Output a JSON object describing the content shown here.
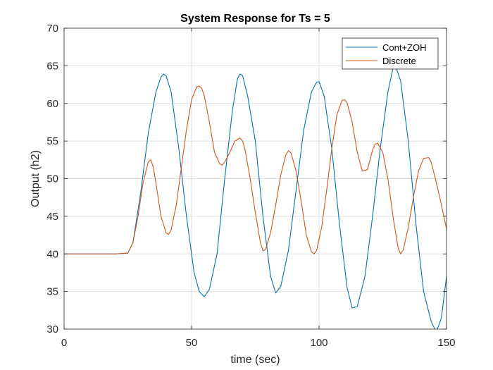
{
  "chart_data": {
    "type": "line",
    "title": "System Response for Ts = 5",
    "xlabel": "time (sec)",
    "ylabel": "Output (h2)",
    "xlim": [
      0,
      150
    ],
    "ylim": [
      30,
      70
    ],
    "xticks": [
      0,
      50,
      100,
      150
    ],
    "xtick_labels": [
      "0",
      "50",
      "100",
      "150"
    ],
    "yticks": [
      30,
      35,
      40,
      45,
      50,
      55,
      60,
      65,
      70
    ],
    "ytick_labels": [
      "30",
      "35",
      "40",
      "45",
      "50",
      "55",
      "60",
      "65",
      "70"
    ],
    "grid": true,
    "legend_position": "top-right",
    "series": [
      {
        "name": "Cont+ZOH",
        "color": "#0072BD",
        "x": [
          0,
          10,
          20,
          25,
          27,
          30,
          33,
          36,
          38,
          39,
          40,
          42,
          45,
          48,
          51,
          53,
          55,
          57,
          60,
          63,
          66,
          68,
          69,
          70,
          72,
          75,
          78,
          81,
          83,
          85,
          88,
          91,
          94,
          97,
          99,
          100,
          102,
          105,
          108,
          111,
          113,
          115,
          118,
          121,
          124,
          127,
          129,
          130,
          132,
          135,
          138,
          141,
          144,
          146,
          148,
          150
        ],
        "y": [
          40,
          40,
          40,
          40.1,
          41.5,
          48,
          56,
          61.5,
          63.5,
          63.9,
          63.7,
          61.5,
          54,
          45,
          37.5,
          35,
          34.3,
          35.3,
          40,
          50,
          59,
          63.3,
          63.9,
          63.7,
          61,
          55,
          45,
          37,
          34.8,
          35.7,
          40.5,
          48.5,
          56.5,
          61.5,
          62.8,
          62.9,
          61,
          54,
          44,
          35.5,
          32.8,
          33,
          37,
          45,
          54,
          61.5,
          64.7,
          65,
          63,
          55,
          44,
          35,
          31,
          29.6,
          31.5,
          37
        ]
      },
      {
        "name": "Discrete",
        "color": "#D95319",
        "x": [
          0,
          10,
          20,
          25,
          27,
          29,
          31,
          33,
          34,
          35,
          36,
          38,
          40,
          41,
          42,
          44,
          46,
          48,
          50,
          52,
          53,
          54,
          55,
          57,
          59,
          61,
          62,
          63,
          65,
          67,
          69,
          70,
          71,
          73,
          75,
          77,
          78,
          79,
          81,
          83,
          85,
          87,
          88,
          89,
          91,
          93,
          95,
          97,
          98,
          99,
          101,
          103,
          105,
          107,
          109,
          110,
          111,
          113,
          115,
          117,
          119,
          120,
          121,
          122,
          123,
          125,
          127,
          129,
          131,
          132,
          133,
          135,
          137,
          139,
          141,
          143,
          144,
          146,
          148,
          150
        ],
        "y": [
          40,
          40,
          40,
          40.1,
          41.5,
          45,
          49.5,
          52.2,
          52.5,
          51.5,
          49.5,
          45,
          42.8,
          42.6,
          43.2,
          46.5,
          51.5,
          56.5,
          60.5,
          62.2,
          62.3,
          62,
          61,
          57.5,
          53.5,
          52,
          51.8,
          52.2,
          53.5,
          55,
          55.4,
          55,
          53.8,
          50,
          45.5,
          41.5,
          40.4,
          40.6,
          42.8,
          46.5,
          50.5,
          53.2,
          53.7,
          53.4,
          51,
          47,
          42.5,
          40.3,
          40,
          40.4,
          43.5,
          48.5,
          54,
          58.5,
          60.4,
          60.5,
          60.1,
          57.5,
          53.5,
          51,
          51.2,
          52.5,
          53.8,
          54.6,
          54.7,
          53.5,
          50,
          45,
          40.8,
          40,
          40.5,
          43.5,
          47.5,
          51,
          52.7,
          52.8,
          52.2,
          49.5,
          46.5,
          43.3
        ]
      }
    ]
  }
}
